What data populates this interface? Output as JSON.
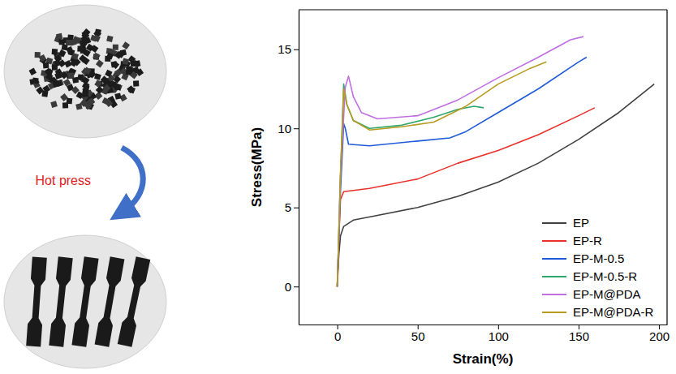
{
  "chart_data": {
    "type": "line",
    "x_label": "Strain(%)",
    "y_label": "Stress(MPa)",
    "xlim": [
      -24,
      205
    ],
    "xticks": [
      0,
      50,
      100,
      150,
      200
    ],
    "ylim": [
      -2.4,
      17.5
    ],
    "yticks": [
      0,
      5,
      10,
      15
    ],
    "grid": false,
    "legend": "lower right",
    "series": [
      {
        "name": "EP",
        "color": "#404040",
        "x": [
          0,
          1,
          2,
          4,
          10,
          25,
          50,
          75,
          100,
          125,
          150,
          175,
          197
        ],
        "values": [
          0,
          2,
          3.2,
          3.8,
          4.2,
          4.5,
          5,
          5.7,
          6.6,
          7.8,
          9.3,
          11,
          12.8
        ]
      },
      {
        "name": "EP-R",
        "color": "#e8312a",
        "x": [
          0,
          1,
          2,
          4,
          20,
          50,
          75,
          100,
          125,
          150,
          160
        ],
        "values": [
          0,
          3,
          5.5,
          6,
          6.2,
          6.8,
          7.8,
          8.6,
          9.6,
          10.8,
          11.3
        ]
      },
      {
        "name": "EP-M-0.5",
        "color": "#1f5bd8",
        "x": [
          0,
          2,
          4,
          5,
          7,
          20,
          50,
          70,
          80,
          100,
          125,
          150,
          155
        ],
        "values": [
          0,
          6,
          10.3,
          10,
          9,
          8.9,
          9.2,
          9.4,
          9.8,
          11,
          12.5,
          14.2,
          14.5
        ]
      },
      {
        "name": "EP-M-0.5-R",
        "color": "#2ea86a",
        "x": [
          0,
          2,
          4,
          6,
          10,
          20,
          40,
          60,
          75,
          85,
          91
        ],
        "values": [
          0,
          7,
          12.8,
          11.5,
          10.5,
          10,
          10.2,
          10.7,
          11.2,
          11.4,
          11.3
        ]
      },
      {
        "name": "EP-M@PDA",
        "color": "#c06ee0",
        "x": [
          0,
          2,
          5,
          7,
          10,
          15,
          25,
          50,
          75,
          100,
          125,
          145,
          153
        ],
        "values": [
          0,
          7,
          12.6,
          13.3,
          12,
          11,
          10.6,
          10.8,
          11.8,
          13.2,
          14.5,
          15.6,
          15.8
        ]
      },
      {
        "name": "EP-M@PDA-R",
        "color": "#b89a1e",
        "x": [
          0,
          2,
          4,
          6,
          10,
          20,
          40,
          60,
          80,
          100,
          120,
          130
        ],
        "values": [
          0,
          7,
          12.5,
          11.5,
          10.5,
          9.9,
          10.1,
          10.4,
          11.4,
          12.8,
          13.8,
          14.2
        ]
      }
    ]
  },
  "process": {
    "label": "Hot press"
  }
}
